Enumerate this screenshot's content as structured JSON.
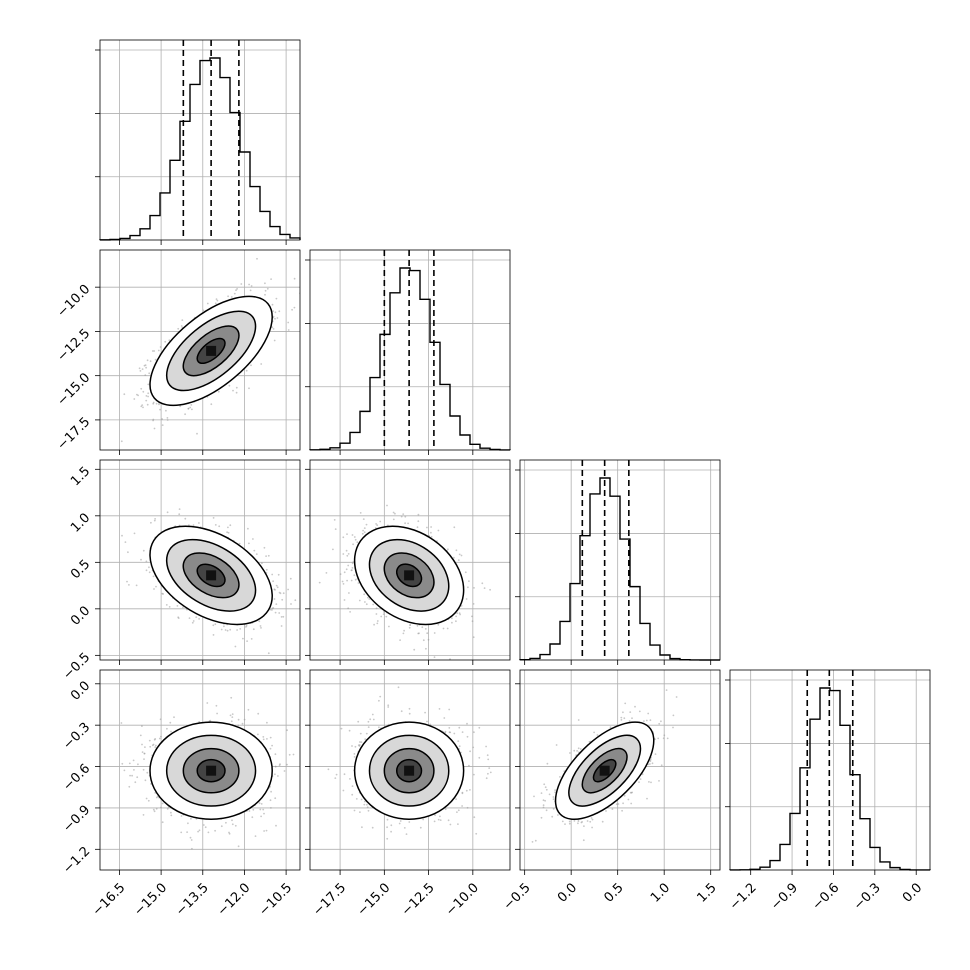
{
  "chart_data": {
    "type": "scatter",
    "subtype": "corner-plot",
    "grid": true,
    "n_params": 4,
    "params": [
      {
        "range": [
          -17.2,
          -10.0
        ],
        "ticks": [
          -16.5,
          -15.0,
          -13.5,
          -12.0,
          -10.5
        ],
        "tick_labels": [
          "−16.5",
          "−15.0",
          "−13.5",
          "−12.0",
          "−10.5"
        ],
        "quantiles": [
          -14.2,
          -13.2,
          -12.2
        ],
        "mean": -13.2,
        "sd": 1.0
      },
      {
        "range": [
          -19.2,
          -7.9
        ],
        "ticks": [
          -17.5,
          -15.0,
          -12.5,
          -10.0
        ],
        "tick_labels": [
          "−17.5",
          "−15.0",
          "−12.5",
          "−10.0"
        ],
        "quantiles": [
          -15.0,
          -13.6,
          -12.2
        ],
        "mean": -13.6,
        "sd": 1.4
      },
      {
        "range": [
          -0.55,
          1.6
        ],
        "ticks": [
          -0.5,
          0.0,
          0.5,
          1.0,
          1.5
        ],
        "tick_labels": [
          "−0.5",
          "0.0",
          "0.5",
          "1.0",
          "1.5"
        ],
        "quantiles": [
          0.12,
          0.36,
          0.62
        ],
        "mean": 0.36,
        "sd": 0.24
      },
      {
        "range": [
          -1.35,
          0.1
        ],
        "ticks": [
          -1.2,
          -0.9,
          -0.6,
          -0.3,
          0.0
        ],
        "tick_labels": [
          "−1.2",
          "−0.9",
          "−0.6",
          "−0.3",
          "0.0"
        ],
        "quantiles": [
          -0.79,
          -0.63,
          -0.46
        ],
        "mean": -0.63,
        "sd": 0.16
      }
    ],
    "correlations": [
      [
        1.0,
        0.62,
        -0.42,
        0.0
      ],
      [
        0.62,
        1.0,
        -0.3,
        0.0
      ],
      [
        -0.42,
        -0.3,
        1.0,
        0.62
      ],
      [
        0.0,
        0.0,
        0.62,
        1.0
      ]
    ],
    "histogram_bins": 20,
    "contour_levels": 4,
    "colors": {
      "ink": "#000000",
      "grid": "#b0b0b0",
      "scatter": "#9a9a9a"
    }
  }
}
